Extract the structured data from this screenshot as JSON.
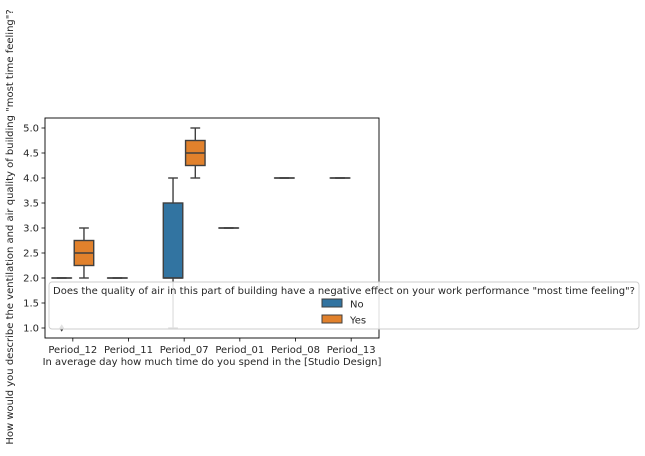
{
  "chart_data": {
    "type": "boxplot",
    "xlabel": "In average day how much time do you spend in the [Studio Design]",
    "ylabel": "How would you describe the ventilation and air quality of building  \"most time feeling\"?",
    "categories": [
      "Period_12",
      "Period_11",
      "Period_07",
      "Period_01",
      "Period_08",
      "Period_13"
    ],
    "ylim": [
      0.8,
      5.2
    ],
    "yticks": [
      "1.0",
      "1.5",
      "2.0",
      "2.5",
      "3.0",
      "3.5",
      "4.0",
      "4.5",
      "5.0"
    ],
    "grid": false,
    "legend": {
      "title": "Does the quality of air in this part of building have a negative effect on your work performance \"most time feeling\"?",
      "placement": "lower-right"
    },
    "series": [
      {
        "name": "No",
        "color": "#3274a1",
        "boxes": [
          {
            "category": "Period_12",
            "whislo": 2.0,
            "q1": 2.0,
            "med": 2.0,
            "q3": 2.0,
            "whishi": 2.0,
            "fliers": [
              1.0
            ]
          },
          {
            "category": "Period_11",
            "whislo": 2.0,
            "q1": 2.0,
            "med": 2.0,
            "q3": 2.0,
            "whishi": 2.0,
            "fliers": []
          },
          {
            "category": "Period_07",
            "whislo": 1.0,
            "q1": 2.0,
            "med": 2.0,
            "q3": 3.5,
            "whishi": 4.0,
            "fliers": []
          },
          {
            "category": "Period_01",
            "whislo": 3.0,
            "q1": 3.0,
            "med": 3.0,
            "q3": 3.0,
            "whishi": 3.0,
            "fliers": []
          },
          {
            "category": "Period_08",
            "whislo": 4.0,
            "q1": 4.0,
            "med": 4.0,
            "q3": 4.0,
            "whishi": 4.0,
            "fliers": []
          },
          {
            "category": "Period_13",
            "whislo": 4.0,
            "q1": 4.0,
            "med": 4.0,
            "q3": 4.0,
            "whishi": 4.0,
            "fliers": []
          }
        ]
      },
      {
        "name": "Yes",
        "color": "#e1812c",
        "boxes": [
          {
            "category": "Period_12",
            "whislo": 2.0,
            "q1": 2.25,
            "med": 2.5,
            "q3": 2.75,
            "whishi": 3.0,
            "fliers": []
          },
          {
            "category": "Period_07",
            "whislo": 4.0,
            "q1": 4.25,
            "med": 4.5,
            "q3": 4.75,
            "whishi": 5.0,
            "fliers": []
          }
        ]
      }
    ]
  }
}
